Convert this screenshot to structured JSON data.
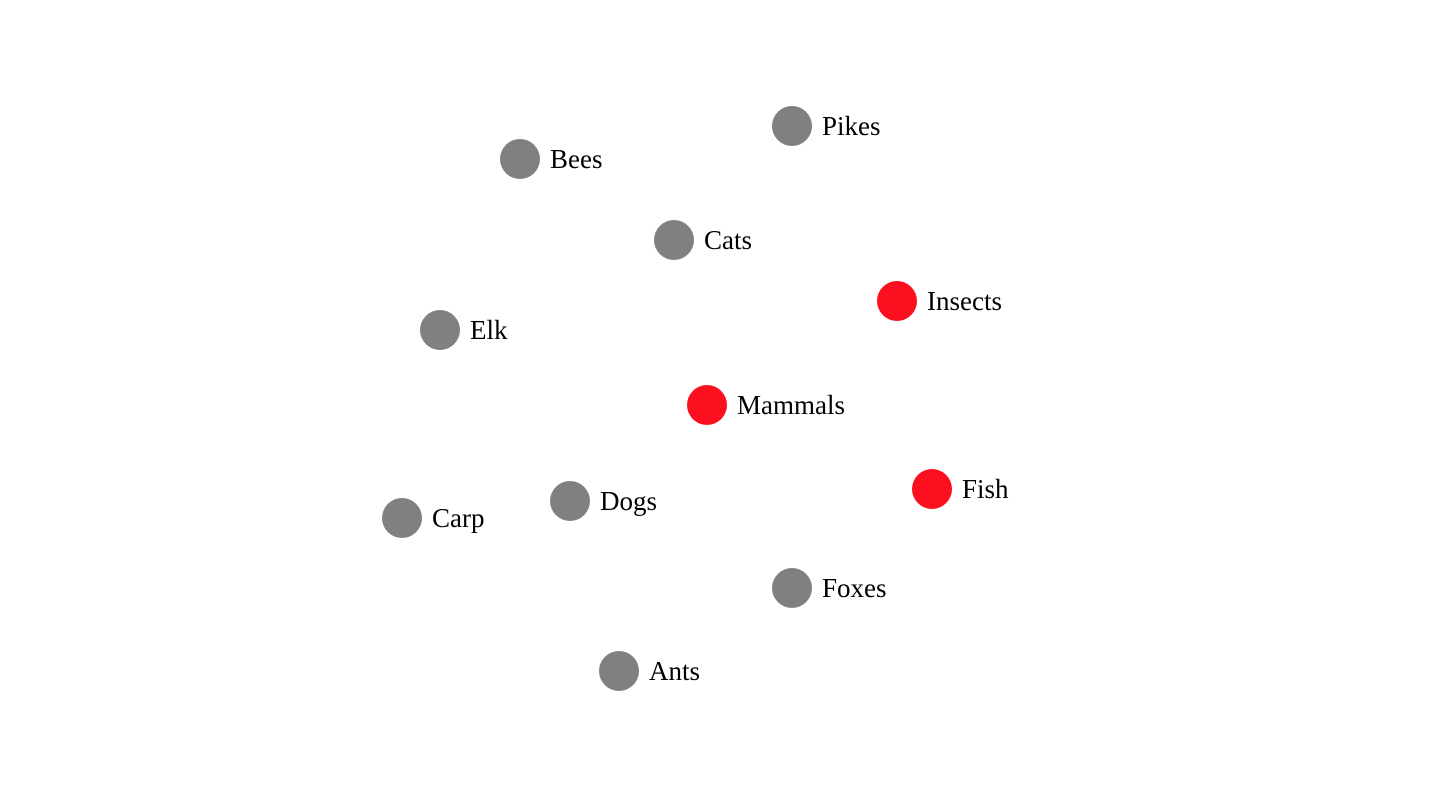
{
  "colors": {
    "group": "#fc101f",
    "item": "#808080",
    "text": "#000000",
    "background": "#ffffff"
  },
  "nodes": [
    {
      "id": "pikes",
      "label": "Pikes",
      "kind": "item"
    },
    {
      "id": "bees",
      "label": "Bees",
      "kind": "item"
    },
    {
      "id": "cats",
      "label": "Cats",
      "kind": "item"
    },
    {
      "id": "insects",
      "label": "Insects",
      "kind": "group"
    },
    {
      "id": "elk",
      "label": "Elk",
      "kind": "item"
    },
    {
      "id": "mammals",
      "label": "Mammals",
      "kind": "group"
    },
    {
      "id": "fish",
      "label": "Fish",
      "kind": "group"
    },
    {
      "id": "dogs",
      "label": "Dogs",
      "kind": "item"
    },
    {
      "id": "carp",
      "label": "Carp",
      "kind": "item"
    },
    {
      "id": "foxes",
      "label": "Foxes",
      "kind": "item"
    },
    {
      "id": "ants",
      "label": "Ants",
      "kind": "item"
    }
  ]
}
